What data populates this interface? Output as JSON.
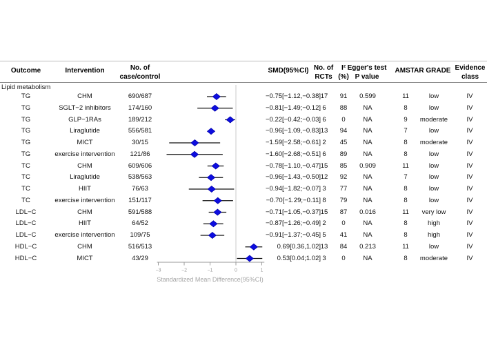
{
  "table": {
    "headers": {
      "outcome": "Outcome",
      "intervention": "Intervention",
      "case_control_line1": "No. of",
      "case_control_line2": "case/control",
      "smd": "SMD(95%CI)",
      "rcts_line1": "No. of",
      "rcts_line2": "RCTs",
      "i2_line1": "I²",
      "i2_line2": "(%)",
      "egger_line1": "Egger's test",
      "egger_line2": "P value",
      "amstar_grade": "AMSTAR GRADE",
      "evidence_line1": "Evidence",
      "evidence_line2": "class"
    },
    "section_label": "Lipid metabolism",
    "rows": [
      {
        "outcome": "TG",
        "intervention": "CHM",
        "case_control": "690/687",
        "smd_text": "−0.75[−1.12,−0.38]",
        "rcts": "17",
        "i2": "91",
        "egger": "0.599",
        "amstar": "11",
        "grade": "low",
        "evidence": "IV"
      },
      {
        "outcome": "TG",
        "intervention": "SGLT−2 inhibitors",
        "case_control": "174/160",
        "smd_text": "−0.81[−1.49;−0.12]",
        "rcts": "6",
        "i2": "88",
        "egger": "NA",
        "amstar": "8",
        "grade": "low",
        "evidence": "IV"
      },
      {
        "outcome": "TG",
        "intervention": "GLP−1RAs",
        "case_control": "189/212",
        "smd_text": "−0.22[−0.42;−0.03]",
        "rcts": "6",
        "i2": "0",
        "egger": "NA",
        "amstar": "9",
        "grade": "moderate",
        "evidence": "IV"
      },
      {
        "outcome": "TG",
        "intervention": "Liraglutide",
        "case_control": "556/581",
        "smd_text": "−0.96[−1.09,−0.83]",
        "rcts": "13",
        "i2": "94",
        "egger": "NA",
        "amstar": "7",
        "grade": "low",
        "evidence": "IV"
      },
      {
        "outcome": "TG",
        "intervention": "MICT",
        "case_control": "30/15",
        "smd_text": "−1.59[−2.58;−0.61]",
        "rcts": "2",
        "i2": "45",
        "egger": "NA",
        "amstar": "8",
        "grade": "moderate",
        "evidence": "IV"
      },
      {
        "outcome": "TG",
        "intervention": "exercise intervention",
        "case_control": "121/86",
        "smd_text": "−1.60[−2.68;−0.51]",
        "rcts": "6",
        "i2": "89",
        "egger": "NA",
        "amstar": "8",
        "grade": "low",
        "evidence": "IV"
      },
      {
        "outcome": "TC",
        "intervention": "CHM",
        "case_control": "609/606",
        "smd_text": "−0.78[−1.10,−0.47]",
        "rcts": "15",
        "i2": "85",
        "egger": "0.909",
        "amstar": "11",
        "grade": "low",
        "evidence": "IV"
      },
      {
        "outcome": "TC",
        "intervention": "Liraglutide",
        "case_control": "538/563",
        "smd_text": "−0.96[−1.43,−0.50]",
        "rcts": "12",
        "i2": "92",
        "egger": "NA",
        "amstar": "7",
        "grade": "low",
        "evidence": "IV"
      },
      {
        "outcome": "TC",
        "intervention": "HIIT",
        "case_control": "76/63",
        "smd_text": "−0.94[−1.82;−0.07]",
        "rcts": "3",
        "i2": "77",
        "egger": "NA",
        "amstar": "8",
        "grade": "low",
        "evidence": "IV"
      },
      {
        "outcome": "TC",
        "intervention": "exercise intervention",
        "case_control": "151/117",
        "smd_text": "−0.70[−1.29;−0.11]",
        "rcts": "8",
        "i2": "79",
        "egger": "NA",
        "amstar": "8",
        "grade": "low",
        "evidence": "IV"
      },
      {
        "outcome": "LDL−C",
        "intervention": "CHM",
        "case_control": "591/588",
        "smd_text": "−0.71[−1.05,−0.37]",
        "rcts": "15",
        "i2": "87",
        "egger": "0.016",
        "amstar": "11",
        "grade": "very low",
        "evidence": "IV"
      },
      {
        "outcome": "LDL−C",
        "intervention": "HIIT",
        "case_control": "64/52",
        "smd_text": "−0.87[−1.26;−0.49]",
        "rcts": "2",
        "i2": "0",
        "egger": "NA",
        "amstar": "8",
        "grade": "high",
        "evidence": "IV"
      },
      {
        "outcome": "LDL−C",
        "intervention": "exercise intervention",
        "case_control": "109/75",
        "smd_text": "−0.91[−1.37;−0.45]",
        "rcts": "5",
        "i2": "41",
        "egger": "NA",
        "amstar": "8",
        "grade": "high",
        "evidence": "IV"
      },
      {
        "outcome": "HDL−C",
        "intervention": "CHM",
        "case_control": "516/513",
        "smd_text": "0.69[0.36,1.02]",
        "rcts": "13",
        "i2": "84",
        "egger": "0.213",
        "amstar": "11",
        "grade": "low",
        "evidence": "IV"
      },
      {
        "outcome": "HDL−C",
        "intervention": "MICT",
        "case_control": "43/29",
        "smd_text": "0.53[0.04;1.02]",
        "rcts": "3",
        "i2": "0",
        "egger": "NA",
        "amstar": "8",
        "grade": "moderate",
        "evidence": "IV"
      }
    ]
  },
  "chart_data": {
    "type": "scatter",
    "variant": "forest-plot",
    "xlabel": "Standardized Mean Difference(95%CI)",
    "x_ticks": [
      -3,
      -2,
      -1,
      0,
      1
    ],
    "xlim": [
      -3.05,
      1.1
    ],
    "reference_line_x": 0,
    "marker": "diamond",
    "marker_color": "#0d0de0",
    "marker_edge_color": "#0000a8",
    "ci_color": "#111111",
    "axis_color": "#9a9a9a",
    "reference_line_color": "#d2d2d2",
    "points": [
      {
        "label": "TG CHM",
        "smd": -0.75,
        "lower": -1.12,
        "upper": -0.38
      },
      {
        "label": "TG SGLT-2 inhibitors",
        "smd": -0.81,
        "lower": -1.49,
        "upper": -0.12
      },
      {
        "label": "TG GLP-1RAs",
        "smd": -0.22,
        "lower": -0.42,
        "upper": -0.03
      },
      {
        "label": "TG Liraglutide",
        "smd": -0.96,
        "lower": -1.09,
        "upper": -0.83
      },
      {
        "label": "TG MICT",
        "smd": -1.59,
        "lower": -2.58,
        "upper": -0.61
      },
      {
        "label": "TG exercise intervention",
        "smd": -1.6,
        "lower": -2.68,
        "upper": -0.51
      },
      {
        "label": "TC CHM",
        "smd": -0.78,
        "lower": -1.1,
        "upper": -0.47
      },
      {
        "label": "TC Liraglutide",
        "smd": -0.96,
        "lower": -1.43,
        "upper": -0.5
      },
      {
        "label": "TC HIIT",
        "smd": -0.94,
        "lower": -1.82,
        "upper": -0.07
      },
      {
        "label": "TC exercise intervention",
        "smd": -0.7,
        "lower": -1.29,
        "upper": -0.11
      },
      {
        "label": "LDL-C CHM",
        "smd": -0.71,
        "lower": -1.05,
        "upper": -0.37
      },
      {
        "label": "LDL-C HIIT",
        "smd": -0.87,
        "lower": -1.26,
        "upper": -0.49
      },
      {
        "label": "LDL-C exercise intervention",
        "smd": -0.91,
        "lower": -1.37,
        "upper": -0.45
      },
      {
        "label": "HDL-C CHM",
        "smd": 0.69,
        "lower": 0.36,
        "upper": 1.02
      },
      {
        "label": "HDL-C MICT",
        "smd": 0.53,
        "lower": 0.04,
        "upper": 1.02
      }
    ]
  }
}
